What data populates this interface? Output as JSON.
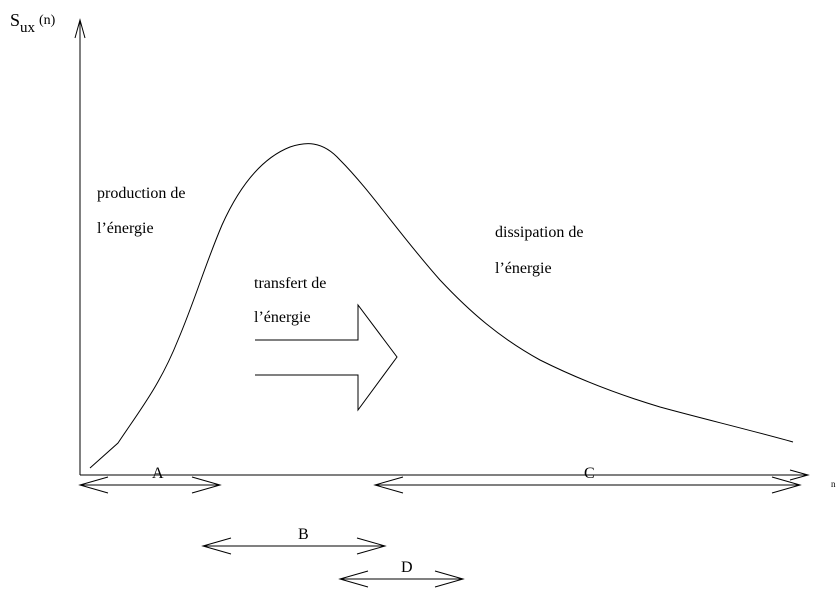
{
  "axes": {
    "y_label": {
      "main": "S",
      "subscript": "ux",
      "suffix": "(n)"
    },
    "x_label": "n"
  },
  "regions": [
    {
      "lines": [
        "production de",
        "l’énergie"
      ]
    },
    {
      "lines": [
        "transfert de",
        "l’énergie"
      ]
    },
    {
      "lines": [
        "dissipation de",
        "l’énergie"
      ]
    }
  ],
  "ranges": [
    {
      "label": "A"
    },
    {
      "label": "B"
    },
    {
      "label": "C"
    },
    {
      "label": "D"
    }
  ]
}
